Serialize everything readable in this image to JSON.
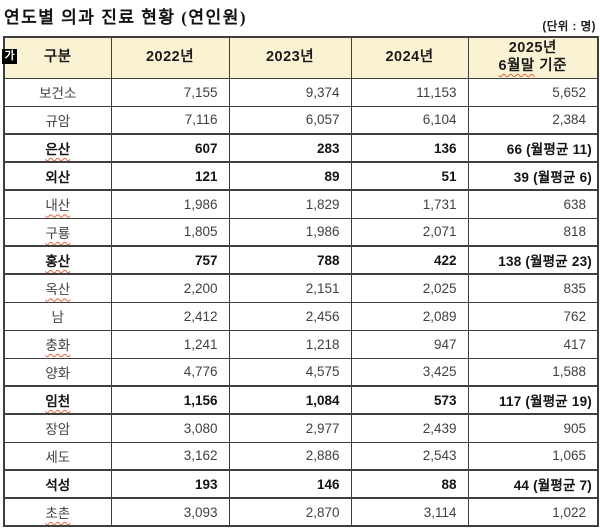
{
  "document": {
    "title": "연도별 의과 진료 현황 (연인원)",
    "unit_label": "(단위 : 명)",
    "ime_badge": "가"
  },
  "colors": {
    "header_bg": "#FAF3D3",
    "border": "#3E3E3E",
    "spellcheck_underline": "#E2633A",
    "text": "#414141",
    "bold_text": "#141414"
  },
  "table": {
    "columns": [
      "구분",
      "2022년",
      "2023년",
      "2024년"
    ],
    "last_column": {
      "line1": "2025년",
      "line2_marked": "6월말",
      "line2_rest": "기준"
    },
    "rows": [
      {
        "name": "보건소",
        "values": [
          "7,155",
          "9,374",
          "11,153",
          "5,652"
        ],
        "bold": false,
        "spellcheck": false
      },
      {
        "name": "규암",
        "values": [
          "7,116",
          "6,057",
          "6,104",
          "2,384"
        ],
        "bold": false,
        "spellcheck": false
      },
      {
        "name": "은산",
        "values": [
          "607",
          "283",
          "136",
          "66 (월평균 11)"
        ],
        "bold": true,
        "spellcheck": true
      },
      {
        "name": "외산",
        "values": [
          "121",
          "89",
          "51",
          "39 (월평균 6)"
        ],
        "bold": true,
        "spellcheck": false
      },
      {
        "name": "내산",
        "values": [
          "1,986",
          "1,829",
          "1,731",
          "638"
        ],
        "bold": false,
        "spellcheck": true
      },
      {
        "name": "구룡",
        "values": [
          "1,805",
          "1,986",
          "2,071",
          "818"
        ],
        "bold": false,
        "spellcheck": true
      },
      {
        "name": "홍산",
        "values": [
          "757",
          "788",
          "422",
          "138 (월평균 23)"
        ],
        "bold": true,
        "spellcheck": true
      },
      {
        "name": "옥산",
        "values": [
          "2,200",
          "2,151",
          "2,025",
          "835"
        ],
        "bold": false,
        "spellcheck": true
      },
      {
        "name": "남",
        "values": [
          "2,412",
          "2,456",
          "2,089",
          "762"
        ],
        "bold": false,
        "spellcheck": false
      },
      {
        "name": "충화",
        "values": [
          "1,241",
          "1,218",
          "947",
          "417"
        ],
        "bold": false,
        "spellcheck": true
      },
      {
        "name": "양화",
        "values": [
          "4,776",
          "4,575",
          "3,425",
          "1,588"
        ],
        "bold": false,
        "spellcheck": false
      },
      {
        "name": "임천",
        "values": [
          "1,156",
          "1,084",
          "573",
          "117 (월평균 19)"
        ],
        "bold": true,
        "spellcheck": true
      },
      {
        "name": "장암",
        "values": [
          "3,080",
          "2,977",
          "2,439",
          "905"
        ],
        "bold": false,
        "spellcheck": false
      },
      {
        "name": "세도",
        "values": [
          "3,162",
          "2,886",
          "2,543",
          "1,065"
        ],
        "bold": false,
        "spellcheck": false
      },
      {
        "name": "석성",
        "values": [
          "193",
          "146",
          "88",
          "44 (월평균 7)"
        ],
        "bold": true,
        "spellcheck": false
      },
      {
        "name": "초촌",
        "values": [
          "3,093",
          "2,870",
          "3,114",
          "1,022"
        ],
        "bold": false,
        "spellcheck": true
      }
    ]
  }
}
